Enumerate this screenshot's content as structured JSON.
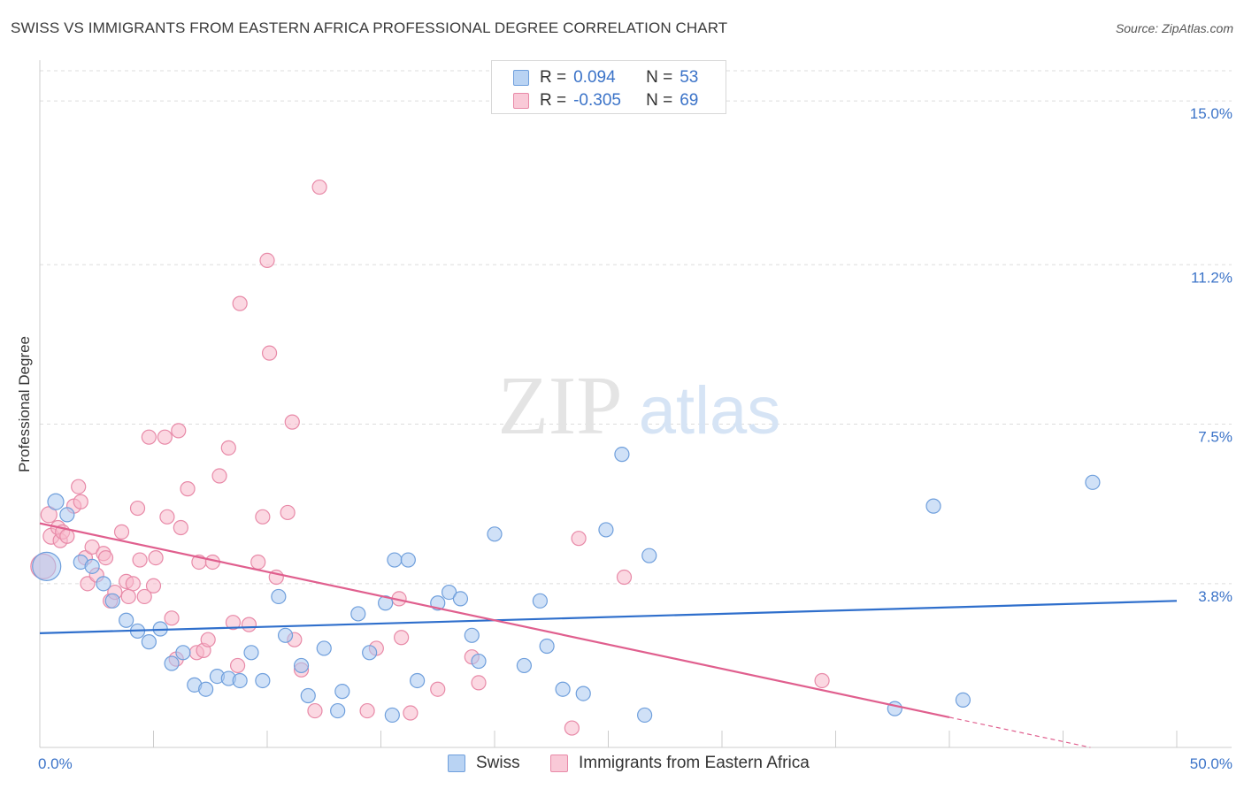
{
  "header": {
    "title": "SWISS VS IMMIGRANTS FROM EASTERN AFRICA PROFESSIONAL DEGREE CORRELATION CHART",
    "source": "Source: ZipAtlas.com"
  },
  "watermark": {
    "zip": "ZIP",
    "atlas": "atlas"
  },
  "colors": {
    "swiss_fill": "#a9c8f0",
    "swiss_stroke": "#6f9fdc",
    "swiss_line": "#2f6fcc",
    "africa_fill": "#f7b8cb",
    "africa_stroke": "#e88aa8",
    "africa_line": "#e05f8e",
    "tick_label": "#3b73c8",
    "grid": "#dddddd"
  },
  "legend": {
    "rows": [
      {
        "r_label": "R =",
        "r_value": "0.094",
        "n_label": "N =",
        "n_value": "53"
      },
      {
        "r_label": "R =",
        "r_value": "-0.305",
        "n_label": "N =",
        "n_value": "69"
      }
    ]
  },
  "bottom_legend": {
    "swiss": "Swiss",
    "africa": "Immigrants from Eastern Africa"
  },
  "chart_data": {
    "type": "scatter",
    "ylabel": "Professional Degree",
    "xlim": [
      0,
      50
    ],
    "ylim": [
      0,
      15.7
    ],
    "x_tick_labels": [
      {
        "value": 0,
        "label": "0.0%"
      },
      {
        "value": 50,
        "label": "50.0%"
      }
    ],
    "x_minor_ticks": [
      5,
      10,
      15,
      20,
      25,
      30,
      35,
      40,
      45,
      50
    ],
    "y_ticks": [
      {
        "value": 3.8,
        "label": "3.8%"
      },
      {
        "value": 7.5,
        "label": "7.5%"
      },
      {
        "value": 11.2,
        "label": "11.2%"
      },
      {
        "value": 15.0,
        "label": "15.0%"
      }
    ],
    "grid": "horizontal-dashed",
    "series": [
      {
        "name": "Swiss",
        "trend": {
          "x0": 0,
          "y0": 2.65,
          "x1": 50,
          "y1": 3.4
        },
        "points": [
          [
            0.3,
            4.2,
            16
          ],
          [
            0.7,
            5.7,
            9
          ],
          [
            1.2,
            5.4,
            8
          ],
          [
            1.8,
            4.3,
            8
          ],
          [
            2.3,
            4.2,
            8
          ],
          [
            2.8,
            3.8,
            8
          ],
          [
            3.2,
            3.4,
            8
          ],
          [
            3.8,
            2.95,
            8
          ],
          [
            4.3,
            2.7,
            8
          ],
          [
            4.8,
            2.45,
            8
          ],
          [
            5.3,
            2.75,
            8
          ],
          [
            5.8,
            1.95,
            8
          ],
          [
            6.3,
            2.2,
            8
          ],
          [
            6.8,
            1.45,
            8
          ],
          [
            7.3,
            1.35,
            8
          ],
          [
            7.8,
            1.65,
            8
          ],
          [
            8.3,
            1.6,
            8
          ],
          [
            8.8,
            1.55,
            8
          ],
          [
            9.3,
            2.2,
            8
          ],
          [
            9.8,
            1.55,
            8
          ],
          [
            10.5,
            3.5,
            8
          ],
          [
            10.8,
            2.6,
            8
          ],
          [
            11.5,
            1.9,
            8
          ],
          [
            11.8,
            1.2,
            8
          ],
          [
            12.5,
            2.3,
            8
          ],
          [
            13.1,
            0.85,
            8
          ],
          [
            13.3,
            1.3,
            8
          ],
          [
            14.0,
            3.1,
            8
          ],
          [
            14.5,
            2.2,
            8
          ],
          [
            15.2,
            3.35,
            8
          ],
          [
            15.5,
            0.75,
            8
          ],
          [
            15.6,
            4.35,
            8
          ],
          [
            16.2,
            4.35,
            8
          ],
          [
            16.6,
            1.55,
            8
          ],
          [
            17.5,
            3.35,
            8
          ],
          [
            18.0,
            3.6,
            8
          ],
          [
            18.5,
            3.45,
            8
          ],
          [
            19.0,
            2.6,
            8
          ],
          [
            19.3,
            2.0,
            8
          ],
          [
            20.0,
            4.95,
            8
          ],
          [
            21.3,
            1.9,
            8
          ],
          [
            22.0,
            3.4,
            8
          ],
          [
            22.3,
            2.35,
            8
          ],
          [
            23.0,
            1.35,
            8
          ],
          [
            23.9,
            1.25,
            8
          ],
          [
            24.9,
            5.05,
            8
          ],
          [
            25.6,
            6.8,
            8
          ],
          [
            26.6,
            0.75,
            8
          ],
          [
            26.8,
            4.45,
            8
          ],
          [
            37.6,
            0.9,
            8
          ],
          [
            39.3,
            5.6,
            8
          ],
          [
            40.6,
            1.1,
            8
          ],
          [
            46.3,
            6.15,
            8
          ]
        ]
      },
      {
        "name": "Immigrants from Eastern Africa",
        "trend": {
          "x0": 0,
          "y0": 5.2,
          "x1": 40,
          "y1": 0.7
        },
        "trend_ext": {
          "x0": 40,
          "y0": 0.7,
          "x1": 46.2,
          "y1": 0.0
        },
        "points": [
          [
            0.15,
            4.2,
            14
          ],
          [
            0.4,
            5.4,
            9
          ],
          [
            0.5,
            4.9,
            9
          ],
          [
            0.8,
            5.1,
            8
          ],
          [
            0.9,
            4.8,
            8
          ],
          [
            1.0,
            5.0,
            8
          ],
          [
            1.2,
            4.9,
            8
          ],
          [
            1.5,
            5.6,
            8
          ],
          [
            1.7,
            6.05,
            8
          ],
          [
            1.8,
            5.7,
            8
          ],
          [
            2.0,
            4.4,
            8
          ],
          [
            2.1,
            3.8,
            8
          ],
          [
            2.3,
            4.65,
            8
          ],
          [
            2.5,
            4.0,
            8
          ],
          [
            2.8,
            4.5,
            8
          ],
          [
            2.9,
            4.4,
            8
          ],
          [
            3.1,
            3.4,
            8
          ],
          [
            3.3,
            3.6,
            8
          ],
          [
            3.6,
            5.0,
            8
          ],
          [
            3.8,
            3.85,
            8
          ],
          [
            4.1,
            3.8,
            8
          ],
          [
            4.3,
            5.55,
            8
          ],
          [
            4.4,
            4.35,
            8
          ],
          [
            4.6,
            3.5,
            8
          ],
          [
            4.8,
            7.2,
            8
          ],
          [
            5.0,
            3.75,
            8
          ],
          [
            5.1,
            4.4,
            8
          ],
          [
            5.5,
            7.2,
            8
          ],
          [
            5.6,
            5.35,
            8
          ],
          [
            5.8,
            3.0,
            8
          ],
          [
            6.0,
            2.05,
            8
          ],
          [
            6.1,
            7.35,
            8
          ],
          [
            6.2,
            5.1,
            8
          ],
          [
            6.5,
            6.0,
            8
          ],
          [
            6.9,
            2.2,
            8
          ],
          [
            7.0,
            4.3,
            8
          ],
          [
            7.2,
            2.25,
            8
          ],
          [
            7.4,
            2.5,
            8
          ],
          [
            7.6,
            4.3,
            8
          ],
          [
            7.9,
            6.3,
            8
          ],
          [
            8.3,
            6.95,
            8
          ],
          [
            8.5,
            2.9,
            8
          ],
          [
            8.7,
            1.9,
            8
          ],
          [
            8.8,
            10.3,
            8
          ],
          [
            9.2,
            2.85,
            8
          ],
          [
            9.6,
            4.3,
            8
          ],
          [
            9.8,
            5.35,
            8
          ],
          [
            10.0,
            11.3,
            8
          ],
          [
            10.1,
            9.15,
            8
          ],
          [
            10.4,
            3.95,
            8
          ],
          [
            10.9,
            5.45,
            8
          ],
          [
            11.1,
            7.55,
            8
          ],
          [
            11.2,
            2.5,
            8
          ],
          [
            11.5,
            1.8,
            8
          ],
          [
            12.1,
            0.85,
            8
          ],
          [
            12.3,
            13.0,
            8
          ],
          [
            14.4,
            0.85,
            8
          ],
          [
            14.8,
            2.3,
            8
          ],
          [
            15.8,
            3.45,
            8
          ],
          [
            15.9,
            2.55,
            8
          ],
          [
            16.3,
            0.8,
            8
          ],
          [
            17.5,
            1.35,
            8
          ],
          [
            19.0,
            2.1,
            8
          ],
          [
            19.3,
            1.5,
            8
          ],
          [
            23.4,
            0.45,
            8
          ],
          [
            23.7,
            4.85,
            8
          ],
          [
            25.7,
            3.95,
            8
          ],
          [
            34.4,
            1.55,
            8
          ],
          [
            3.9,
            3.5,
            8
          ]
        ]
      }
    ]
  }
}
